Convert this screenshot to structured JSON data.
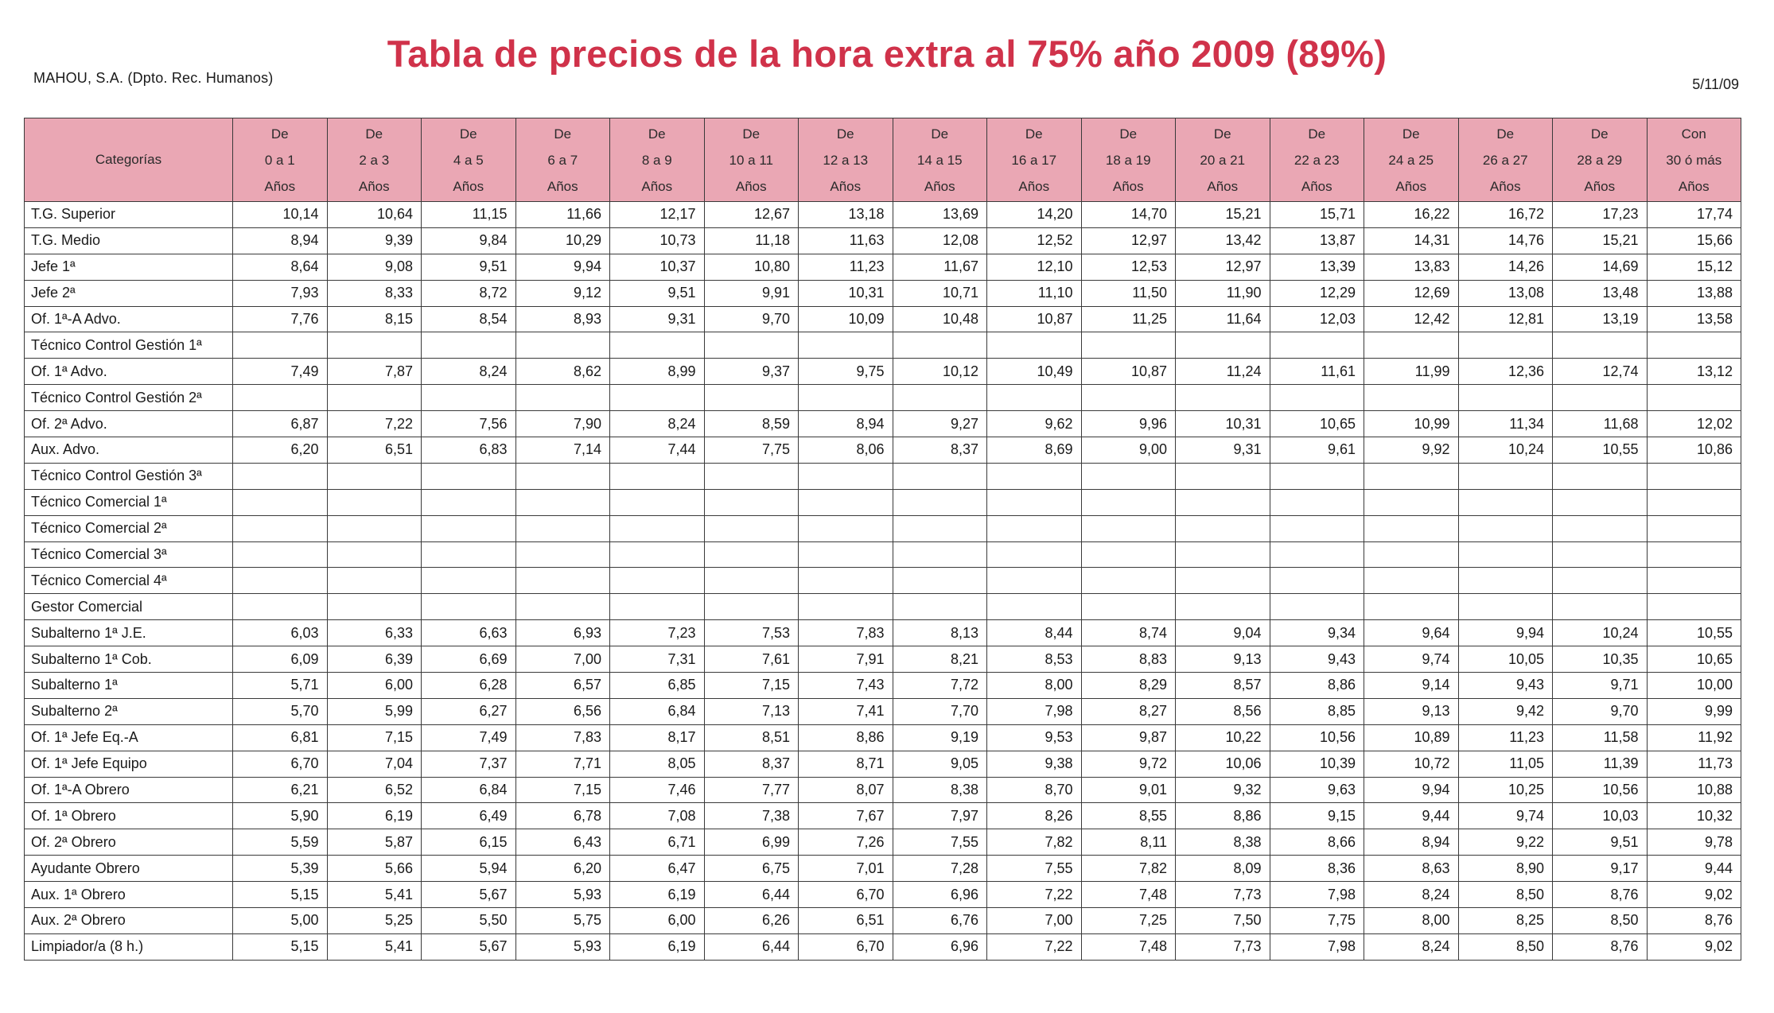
{
  "header": {
    "company": "MAHOU, S.A. (Dpto. Rec. Humanos)",
    "title": "Tabla de precios de la hora extra al 75% año 2009 (89%)",
    "date": "5/11/09"
  },
  "colors": {
    "title": "#d0324a",
    "header_bg": "#eaa7b4"
  },
  "table": {
    "category_header": "Categorías",
    "columns": [
      {
        "l1": "De",
        "l2": "0 a 1",
        "l3": "Años"
      },
      {
        "l1": "De",
        "l2": "2 a 3",
        "l3": "Años"
      },
      {
        "l1": "De",
        "l2": "4 a 5",
        "l3": "Años"
      },
      {
        "l1": "De",
        "l2": "6 a 7",
        "l3": "Años"
      },
      {
        "l1": "De",
        "l2": "8 a 9",
        "l3": "Años"
      },
      {
        "l1": "De",
        "l2": "10 a 11",
        "l3": "Años"
      },
      {
        "l1": "De",
        "l2": "12 a 13",
        "l3": "Años"
      },
      {
        "l1": "De",
        "l2": "14 a 15",
        "l3": "Años"
      },
      {
        "l1": "De",
        "l2": "16 a 17",
        "l3": "Años"
      },
      {
        "l1": "De",
        "l2": "18 a 19",
        "l3": "Años"
      },
      {
        "l1": "De",
        "l2": "20 a 21",
        "l3": "Años"
      },
      {
        "l1": "De",
        "l2": "22 a 23",
        "l3": "Años"
      },
      {
        "l1": "De",
        "l2": "24 a 25",
        "l3": "Años"
      },
      {
        "l1": "De",
        "l2": "26 a 27",
        "l3": "Años"
      },
      {
        "l1": "De",
        "l2": "28 a 29",
        "l3": "Años"
      },
      {
        "l1": "Con",
        "l2": "30 ó más",
        "l3": "Años"
      }
    ],
    "rows": [
      {
        "category": "T.G. Superior",
        "values": [
          "10,14",
          "10,64",
          "11,15",
          "11,66",
          "12,17",
          "12,67",
          "13,18",
          "13,69",
          "14,20",
          "14,70",
          "15,21",
          "15,71",
          "16,22",
          "16,72",
          "17,23",
          "17,74"
        ]
      },
      {
        "category": "T.G. Medio",
        "values": [
          "8,94",
          "9,39",
          "9,84",
          "10,29",
          "10,73",
          "11,18",
          "11,63",
          "12,08",
          "12,52",
          "12,97",
          "13,42",
          "13,87",
          "14,31",
          "14,76",
          "15,21",
          "15,66"
        ]
      },
      {
        "category": "Jefe 1ª",
        "values": [
          "8,64",
          "9,08",
          "9,51",
          "9,94",
          "10,37",
          "10,80",
          "11,23",
          "11,67",
          "12,10",
          "12,53",
          "12,97",
          "13,39",
          "13,83",
          "14,26",
          "14,69",
          "15,12"
        ]
      },
      {
        "category": "Jefe 2ª",
        "values": [
          "7,93",
          "8,33",
          "8,72",
          "9,12",
          "9,51",
          "9,91",
          "10,31",
          "10,71",
          "11,10",
          "11,50",
          "11,90",
          "12,29",
          "12,69",
          "13,08",
          "13,48",
          "13,88"
        ]
      },
      {
        "category": "Of. 1ª-A Advo.",
        "values": [
          "7,76",
          "8,15",
          "8,54",
          "8,93",
          "9,31",
          "9,70",
          "10,09",
          "10,48",
          "10,87",
          "11,25",
          "11,64",
          "12,03",
          "12,42",
          "12,81",
          "13,19",
          "13,58"
        ]
      },
      {
        "category": "Técnico Control Gestión 1ª",
        "values": [
          "",
          "",
          "",
          "",
          "",
          "",
          "",
          "",
          "",
          "",
          "",
          "",
          "",
          "",
          "",
          ""
        ]
      },
      {
        "category": "Of. 1ª Advo.",
        "values": [
          "7,49",
          "7,87",
          "8,24",
          "8,62",
          "8,99",
          "9,37",
          "9,75",
          "10,12",
          "10,49",
          "10,87",
          "11,24",
          "11,61",
          "11,99",
          "12,36",
          "12,74",
          "13,12"
        ]
      },
      {
        "category": "Técnico Control Gestión 2ª",
        "values": [
          "",
          "",
          "",
          "",
          "",
          "",
          "",
          "",
          "",
          "",
          "",
          "",
          "",
          "",
          "",
          ""
        ]
      },
      {
        "category": "Of. 2ª Advo.",
        "values": [
          "6,87",
          "7,22",
          "7,56",
          "7,90",
          "8,24",
          "8,59",
          "8,94",
          "9,27",
          "9,62",
          "9,96",
          "10,31",
          "10,65",
          "10,99",
          "11,34",
          "11,68",
          "12,02"
        ]
      },
      {
        "category": "Aux. Advo.",
        "values": [
          "6,20",
          "6,51",
          "6,83",
          "7,14",
          "7,44",
          "7,75",
          "8,06",
          "8,37",
          "8,69",
          "9,00",
          "9,31",
          "9,61",
          "9,92",
          "10,24",
          "10,55",
          "10,86"
        ]
      },
      {
        "category": "Técnico Control Gestión 3ª",
        "values": [
          "",
          "",
          "",
          "",
          "",
          "",
          "",
          "",
          "",
          "",
          "",
          "",
          "",
          "",
          "",
          ""
        ]
      },
      {
        "category": "Técnico Comercial 1ª",
        "values": [
          "",
          "",
          "",
          "",
          "",
          "",
          "",
          "",
          "",
          "",
          "",
          "",
          "",
          "",
          "",
          ""
        ]
      },
      {
        "category": "Técnico Comercial 2ª",
        "values": [
          "",
          "",
          "",
          "",
          "",
          "",
          "",
          "",
          "",
          "",
          "",
          "",
          "",
          "",
          "",
          ""
        ]
      },
      {
        "category": "Técnico Comercial 3ª",
        "values": [
          "",
          "",
          "",
          "",
          "",
          "",
          "",
          "",
          "",
          "",
          "",
          "",
          "",
          "",
          "",
          ""
        ]
      },
      {
        "category": "Técnico Comercial 4ª",
        "values": [
          "",
          "",
          "",
          "",
          "",
          "",
          "",
          "",
          "",
          "",
          "",
          "",
          "",
          "",
          "",
          ""
        ]
      },
      {
        "category": "Gestor Comercial",
        "values": [
          "",
          "",
          "",
          "",
          "",
          "",
          "",
          "",
          "",
          "",
          "",
          "",
          "",
          "",
          "",
          ""
        ]
      },
      {
        "category": "Subalterno 1ª J.E.",
        "values": [
          "6,03",
          "6,33",
          "6,63",
          "6,93",
          "7,23",
          "7,53",
          "7,83",
          "8,13",
          "8,44",
          "8,74",
          "9,04",
          "9,34",
          "9,64",
          "9,94",
          "10,24",
          "10,55"
        ]
      },
      {
        "category": "Subalterno 1ª Cob.",
        "values": [
          "6,09",
          "6,39",
          "6,69",
          "7,00",
          "7,31",
          "7,61",
          "7,91",
          "8,21",
          "8,53",
          "8,83",
          "9,13",
          "9,43",
          "9,74",
          "10,05",
          "10,35",
          "10,65"
        ]
      },
      {
        "category": "Subalterno 1ª",
        "values": [
          "5,71",
          "6,00",
          "6,28",
          "6,57",
          "6,85",
          "7,15",
          "7,43",
          "7,72",
          "8,00",
          "8,29",
          "8,57",
          "8,86",
          "9,14",
          "9,43",
          "9,71",
          "10,00"
        ]
      },
      {
        "category": "Subalterno 2ª",
        "values": [
          "5,70",
          "5,99",
          "6,27",
          "6,56",
          "6,84",
          "7,13",
          "7,41",
          "7,70",
          "7,98",
          "8,27",
          "8,56",
          "8,85",
          "9,13",
          "9,42",
          "9,70",
          "9,99"
        ]
      },
      {
        "category": "Of. 1ª Jefe Eq.-A",
        "values": [
          "6,81",
          "7,15",
          "7,49",
          "7,83",
          "8,17",
          "8,51",
          "8,86",
          "9,19",
          "9,53",
          "9,87",
          "10,22",
          "10,56",
          "10,89",
          "11,23",
          "11,58",
          "11,92"
        ]
      },
      {
        "category": "Of. 1ª Jefe Equipo",
        "values": [
          "6,70",
          "7,04",
          "7,37",
          "7,71",
          "8,05",
          "8,37",
          "8,71",
          "9,05",
          "9,38",
          "9,72",
          "10,06",
          "10,39",
          "10,72",
          "11,05",
          "11,39",
          "11,73"
        ]
      },
      {
        "category": "Of. 1ª-A Obrero",
        "values": [
          "6,21",
          "6,52",
          "6,84",
          "7,15",
          "7,46",
          "7,77",
          "8,07",
          "8,38",
          "8,70",
          "9,01",
          "9,32",
          "9,63",
          "9,94",
          "10,25",
          "10,56",
          "10,88"
        ]
      },
      {
        "category": "Of. 1ª Obrero",
        "values": [
          "5,90",
          "6,19",
          "6,49",
          "6,78",
          "7,08",
          "7,38",
          "7,67",
          "7,97",
          "8,26",
          "8,55",
          "8,86",
          "9,15",
          "9,44",
          "9,74",
          "10,03",
          "10,32"
        ]
      },
      {
        "category": "Of. 2ª Obrero",
        "values": [
          "5,59",
          "5,87",
          "6,15",
          "6,43",
          "6,71",
          "6,99",
          "7,26",
          "7,55",
          "7,82",
          "8,11",
          "8,38",
          "8,66",
          "8,94",
          "9,22",
          "9,51",
          "9,78"
        ]
      },
      {
        "category": "Ayudante Obrero",
        "values": [
          "5,39",
          "5,66",
          "5,94",
          "6,20",
          "6,47",
          "6,75",
          "7,01",
          "7,28",
          "7,55",
          "7,82",
          "8,09",
          "8,36",
          "8,63",
          "8,90",
          "9,17",
          "9,44"
        ]
      },
      {
        "category": "Aux. 1ª Obrero",
        "values": [
          "5,15",
          "5,41",
          "5,67",
          "5,93",
          "6,19",
          "6,44",
          "6,70",
          "6,96",
          "7,22",
          "7,48",
          "7,73",
          "7,98",
          "8,24",
          "8,50",
          "8,76",
          "9,02"
        ]
      },
      {
        "category": "Aux. 2ª Obrero",
        "values": [
          "5,00",
          "5,25",
          "5,50",
          "5,75",
          "6,00",
          "6,26",
          "6,51",
          "6,76",
          "7,00",
          "7,25",
          "7,50",
          "7,75",
          "8,00",
          "8,25",
          "8,50",
          "8,76"
        ]
      },
      {
        "category": "Limpiador/a (8 h.)",
        "values": [
          "5,15",
          "5,41",
          "5,67",
          "5,93",
          "6,19",
          "6,44",
          "6,70",
          "6,96",
          "7,22",
          "7,48",
          "7,73",
          "7,98",
          "8,24",
          "8,50",
          "8,76",
          "9,02"
        ]
      }
    ]
  }
}
